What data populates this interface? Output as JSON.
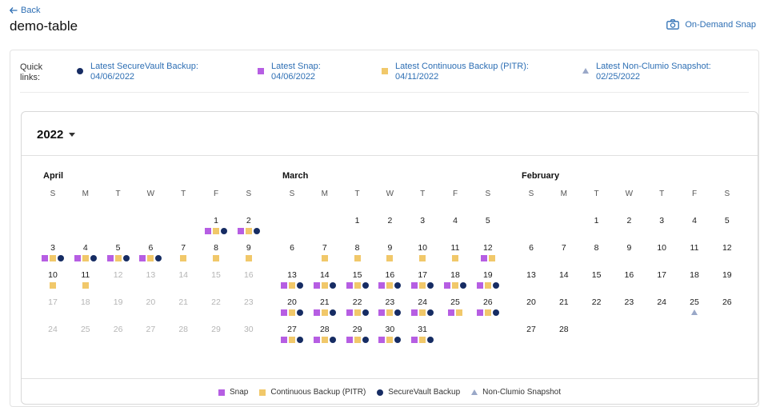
{
  "header": {
    "back_label": "Back",
    "title": "demo-table",
    "snap_button_label": "On-Demand Snap"
  },
  "quick_links": {
    "label": "Quick links:",
    "items": [
      {
        "label": "Latest SecureVault Backup:",
        "date": "04/06/2022",
        "marker": "vault"
      },
      {
        "label": "Latest Snap:",
        "date": "04/06/2022",
        "marker": "snap"
      },
      {
        "label": "Latest Continuous Backup (PITR):",
        "date": "04/11/2022",
        "marker": "pitr"
      },
      {
        "label": "Latest Non-Clumio Snapshot:",
        "date": "02/25/2022",
        "marker": "nc"
      }
    ]
  },
  "calendar": {
    "year": "2022",
    "weekday_labels": [
      "S",
      "M",
      "T",
      "W",
      "T",
      "F",
      "S"
    ],
    "months": [
      {
        "name": "April",
        "weeks": [
          [
            null,
            null,
            null,
            null,
            null,
            {
              "d": 1,
              "m": [
                "snap",
                "pitr",
                "vault"
              ]
            },
            {
              "d": 2,
              "m": [
                "snap",
                "pitr",
                "vault"
              ]
            }
          ],
          [
            {
              "d": 3,
              "m": [
                "snap",
                "pitr",
                "vault"
              ]
            },
            {
              "d": 4,
              "m": [
                "snap",
                "pitr",
                "vault"
              ]
            },
            {
              "d": 5,
              "m": [
                "snap",
                "pitr",
                "vault"
              ]
            },
            {
              "d": 6,
              "m": [
                "snap",
                "pitr",
                "vault"
              ]
            },
            {
              "d": 7,
              "m": [
                "pitr"
              ]
            },
            {
              "d": 8,
              "m": [
                "pitr"
              ]
            },
            {
              "d": 9,
              "m": [
                "pitr"
              ]
            }
          ],
          [
            {
              "d": 10,
              "m": [
                "pitr"
              ]
            },
            {
              "d": 11,
              "m": [
                "pitr"
              ]
            },
            {
              "d": 12,
              "dim": true
            },
            {
              "d": 13,
              "dim": true
            },
            {
              "d": 14,
              "dim": true
            },
            {
              "d": 15,
              "dim": true
            },
            {
              "d": 16,
              "dim": true
            }
          ],
          [
            {
              "d": 17,
              "dim": true
            },
            {
              "d": 18,
              "dim": true
            },
            {
              "d": 19,
              "dim": true
            },
            {
              "d": 20,
              "dim": true
            },
            {
              "d": 21,
              "dim": true
            },
            {
              "d": 22,
              "dim": true
            },
            {
              "d": 23,
              "dim": true
            }
          ],
          [
            {
              "d": 24,
              "dim": true
            },
            {
              "d": 25,
              "dim": true
            },
            {
              "d": 26,
              "dim": true
            },
            {
              "d": 27,
              "dim": true
            },
            {
              "d": 28,
              "dim": true
            },
            {
              "d": 29,
              "dim": true
            },
            {
              "d": 30,
              "dim": true
            }
          ]
        ]
      },
      {
        "name": "March",
        "weeks": [
          [
            null,
            null,
            {
              "d": 1
            },
            {
              "d": 2
            },
            {
              "d": 3
            },
            {
              "d": 4
            },
            {
              "d": 5
            }
          ],
          [
            {
              "d": 6
            },
            {
              "d": 7,
              "m": [
                "pitr"
              ]
            },
            {
              "d": 8,
              "m": [
                "pitr"
              ]
            },
            {
              "d": 9,
              "m": [
                "pitr"
              ]
            },
            {
              "d": 10,
              "m": [
                "pitr"
              ]
            },
            {
              "d": 11,
              "m": [
                "pitr"
              ]
            },
            {
              "d": 12,
              "m": [
                "snap",
                "pitr"
              ]
            }
          ],
          [
            {
              "d": 13,
              "m": [
                "snap",
                "pitr",
                "vault"
              ]
            },
            {
              "d": 14,
              "m": [
                "snap",
                "pitr",
                "vault"
              ]
            },
            {
              "d": 15,
              "m": [
                "snap",
                "pitr",
                "vault"
              ]
            },
            {
              "d": 16,
              "m": [
                "snap",
                "pitr",
                "vault"
              ]
            },
            {
              "d": 17,
              "m": [
                "snap",
                "pitr",
                "vault"
              ]
            },
            {
              "d": 18,
              "m": [
                "snap",
                "pitr",
                "vault"
              ]
            },
            {
              "d": 19,
              "m": [
                "snap",
                "pitr",
                "vault"
              ]
            }
          ],
          [
            {
              "d": 20,
              "m": [
                "snap",
                "pitr",
                "vault"
              ]
            },
            {
              "d": 21,
              "m": [
                "snap",
                "pitr",
                "vault"
              ]
            },
            {
              "d": 22,
              "m": [
                "snap",
                "pitr",
                "vault"
              ]
            },
            {
              "d": 23,
              "m": [
                "snap",
                "pitr",
                "vault"
              ]
            },
            {
              "d": 24,
              "m": [
                "snap",
                "pitr",
                "vault"
              ]
            },
            {
              "d": 25,
              "m": [
                "snap",
                "pitr"
              ]
            },
            {
              "d": 26,
              "m": [
                "snap",
                "pitr",
                "vault"
              ]
            }
          ],
          [
            {
              "d": 27,
              "m": [
                "snap",
                "pitr",
                "vault"
              ]
            },
            {
              "d": 28,
              "m": [
                "snap",
                "pitr",
                "vault"
              ]
            },
            {
              "d": 29,
              "m": [
                "snap",
                "pitr",
                "vault"
              ]
            },
            {
              "d": 30,
              "m": [
                "snap",
                "pitr",
                "vault"
              ]
            },
            {
              "d": 31,
              "m": [
                "snap",
                "pitr",
                "vault"
              ]
            },
            null,
            null
          ]
        ]
      },
      {
        "name": "February",
        "weeks": [
          [
            null,
            null,
            {
              "d": 1
            },
            {
              "d": 2
            },
            {
              "d": 3
            },
            {
              "d": 4
            },
            {
              "d": 5
            }
          ],
          [
            {
              "d": 6
            },
            {
              "d": 7
            },
            {
              "d": 8
            },
            {
              "d": 9
            },
            {
              "d": 10
            },
            {
              "d": 11
            },
            {
              "d": 12
            }
          ],
          [
            {
              "d": 13
            },
            {
              "d": 14
            },
            {
              "d": 15
            },
            {
              "d": 16
            },
            {
              "d": 17
            },
            {
              "d": 18
            },
            {
              "d": 19
            }
          ],
          [
            {
              "d": 20
            },
            {
              "d": 21
            },
            {
              "d": 22
            },
            {
              "d": 23
            },
            {
              "d": 24
            },
            {
              "d": 25,
              "m": [
                "nc"
              ]
            },
            {
              "d": 26
            }
          ],
          [
            {
              "d": 27
            },
            {
              "d": 28
            },
            null,
            null,
            null,
            null,
            null
          ]
        ]
      }
    ]
  },
  "legend": [
    {
      "label": "Snap",
      "marker": "snap"
    },
    {
      "label": "Continuous Backup (PITR)",
      "marker": "pitr"
    },
    {
      "label": "SecureVault Backup",
      "marker": "vault"
    },
    {
      "label": "Non-Clumio Snapshot",
      "marker": "nc"
    }
  ],
  "colors": {
    "snap": "#b65ee3",
    "pitr": "#f1c86a",
    "vault": "#162c63",
    "non_clumio": "#9aa8c8",
    "link": "#2e6fb4"
  },
  "icons": {
    "back": "arrow-left-icon",
    "snap_button": "camera-icon",
    "year_dropdown": "caret-down-icon"
  }
}
